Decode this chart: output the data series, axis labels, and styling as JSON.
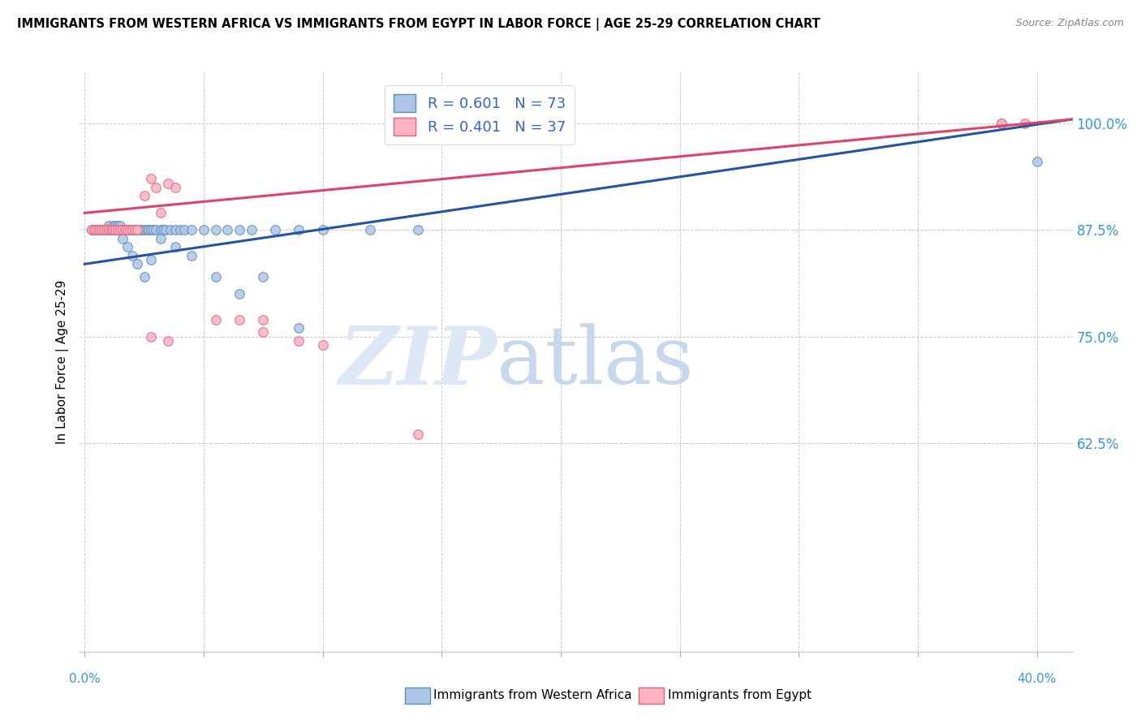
{
  "title": "IMMIGRANTS FROM WESTERN AFRICA VS IMMIGRANTS FROM EGYPT IN LABOR FORCE | AGE 25-29 CORRELATION CHART",
  "source": "Source: ZipAtlas.com",
  "ylabel": "In Labor Force | Age 25-29",
  "ytick_labels": [
    "100.0%",
    "87.5%",
    "75.0%",
    "62.5%"
  ],
  "ytick_values": [
    1.0,
    0.875,
    0.75,
    0.625
  ],
  "xlim": [
    -0.002,
    0.415
  ],
  "ylim": [
    0.38,
    1.06
  ],
  "blue_color": "#AEC6E8",
  "blue_edge_color": "#5B8DB8",
  "pink_color": "#FFB3C1",
  "pink_edge_color": "#E8627A",
  "blue_line_color": "#2255AA",
  "pink_line_color": "#DD4466",
  "blue_R": "0.601",
  "blue_N": "73",
  "pink_R": "0.401",
  "pink_N": "37",
  "blue_trend_x0": 0.0,
  "blue_trend_y0": 0.835,
  "blue_trend_x1": 0.415,
  "blue_trend_y1": 1.005,
  "pink_trend_x0": 0.0,
  "pink_trend_y0": 0.895,
  "pink_trend_x1": 0.415,
  "pink_trend_y1": 1.005,
  "blue_points_x": [
    0.003,
    0.004,
    0.005,
    0.006,
    0.007,
    0.008,
    0.009,
    0.01,
    0.01,
    0.011,
    0.012,
    0.012,
    0.013,
    0.013,
    0.014,
    0.014,
    0.015,
    0.015,
    0.015,
    0.016,
    0.016,
    0.017,
    0.017,
    0.018,
    0.018,
    0.019,
    0.019,
    0.02,
    0.02,
    0.021,
    0.022,
    0.022,
    0.023,
    0.024,
    0.025,
    0.026,
    0.027,
    0.028,
    0.029,
    0.03,
    0.032,
    0.033,
    0.034,
    0.036,
    0.038,
    0.04,
    0.042,
    0.045,
    0.05,
    0.055,
    0.06,
    0.065,
    0.07,
    0.08,
    0.09,
    0.1,
    0.12,
    0.14,
    0.016,
    0.018,
    0.02,
    0.022,
    0.025,
    0.028,
    0.032,
    0.038,
    0.045,
    0.055,
    0.065,
    0.075,
    0.09,
    0.385,
    0.4
  ],
  "blue_points_y": [
    0.875,
    0.875,
    0.875,
    0.875,
    0.875,
    0.875,
    0.875,
    0.875,
    0.88,
    0.875,
    0.875,
    0.88,
    0.875,
    0.88,
    0.875,
    0.88,
    0.875,
    0.875,
    0.88,
    0.875,
    0.875,
    0.875,
    0.875,
    0.875,
    0.875,
    0.875,
    0.875,
    0.875,
    0.875,
    0.875,
    0.875,
    0.875,
    0.875,
    0.875,
    0.875,
    0.875,
    0.875,
    0.875,
    0.875,
    0.875,
    0.875,
    0.875,
    0.875,
    0.875,
    0.875,
    0.875,
    0.875,
    0.875,
    0.875,
    0.875,
    0.875,
    0.875,
    0.875,
    0.875,
    0.875,
    0.875,
    0.875,
    0.875,
    0.865,
    0.855,
    0.845,
    0.835,
    0.82,
    0.84,
    0.865,
    0.855,
    0.845,
    0.82,
    0.8,
    0.82,
    0.76,
    1.0,
    0.955
  ],
  "pink_points_x": [
    0.003,
    0.004,
    0.005,
    0.006,
    0.007,
    0.008,
    0.009,
    0.01,
    0.011,
    0.012,
    0.013,
    0.014,
    0.015,
    0.016,
    0.017,
    0.018,
    0.019,
    0.02,
    0.021,
    0.022,
    0.025,
    0.028,
    0.03,
    0.032,
    0.035,
    0.038,
    0.065,
    0.075,
    0.09,
    0.1,
    0.14,
    0.385,
    0.395,
    0.028,
    0.035,
    0.055,
    0.075
  ],
  "pink_points_y": [
    0.875,
    0.875,
    0.875,
    0.875,
    0.875,
    0.875,
    0.875,
    0.875,
    0.875,
    0.875,
    0.875,
    0.875,
    0.875,
    0.875,
    0.875,
    0.875,
    0.875,
    0.875,
    0.875,
    0.875,
    0.915,
    0.935,
    0.925,
    0.895,
    0.93,
    0.925,
    0.77,
    0.755,
    0.745,
    0.74,
    0.635,
    1.0,
    1.0,
    0.75,
    0.745,
    0.77,
    0.77
  ]
}
